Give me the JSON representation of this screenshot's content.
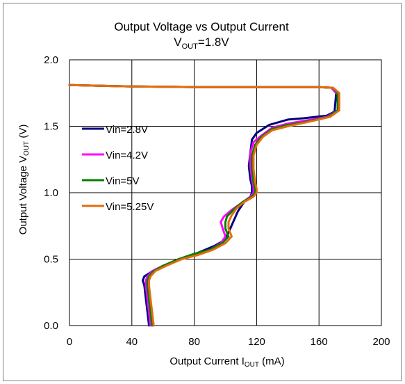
{
  "chart_data": {
    "type": "line",
    "title": "Output Voltage vs Output Current",
    "subtitle": {
      "main": "V",
      "sub": "OUT",
      "rest": "=1.8V"
    },
    "xlabel": {
      "main": "Output Current I",
      "sub": "OUT",
      "rest": " (mA)"
    },
    "ylabel": {
      "main": "Output Voltage V",
      "sub": "OUT",
      "rest": " (V)"
    },
    "xlim": [
      0,
      200
    ],
    "ylim": [
      0,
      2.0
    ],
    "xticks": [
      0,
      40,
      80,
      120,
      160,
      200
    ],
    "yticks": [
      0.0,
      0.5,
      1.0,
      1.5,
      2.0
    ],
    "xtick_labels": [
      "0",
      "40",
      "80",
      "120",
      "160",
      "200"
    ],
    "ytick_labels": [
      "0.0",
      "0.5",
      "1.0",
      "1.5",
      "2.0"
    ],
    "grid": true,
    "legend_position": "left-middle",
    "series": [
      {
        "name": "Vin=2.8V",
        "color": "#000080",
        "points": [
          [
            0,
            1.81
          ],
          [
            40,
            1.8
          ],
          [
            80,
            1.795
          ],
          [
            120,
            1.795
          ],
          [
            160,
            1.795
          ],
          [
            168,
            1.79
          ],
          [
            171,
            1.75
          ],
          [
            170,
            1.61
          ],
          [
            165,
            1.58
          ],
          [
            150,
            1.56
          ],
          [
            140,
            1.55
          ],
          [
            128,
            1.51
          ],
          [
            120,
            1.45
          ],
          [
            117,
            1.4
          ],
          [
            116,
            1.3
          ],
          [
            115,
            1.2
          ],
          [
            116,
            1.1
          ],
          [
            117,
            1.05
          ],
          [
            117,
            1.0
          ],
          [
            116,
            0.97
          ],
          [
            112,
            0.93
          ],
          [
            108,
            0.86
          ],
          [
            105,
            0.78
          ],
          [
            102,
            0.7
          ],
          [
            99,
            0.64
          ],
          [
            93,
            0.6
          ],
          [
            85,
            0.56
          ],
          [
            72,
            0.5
          ],
          [
            60,
            0.45
          ],
          [
            52,
            0.4
          ],
          [
            48,
            0.37
          ],
          [
            47,
            0.34
          ],
          [
            48,
            0.3
          ],
          [
            49,
            0.2
          ],
          [
            50,
            0.1
          ],
          [
            51,
            0.0
          ]
        ]
      },
      {
        "name": "Vin=4.2V",
        "color": "#ff00ff",
        "points": [
          [
            0,
            1.81
          ],
          [
            40,
            1.8
          ],
          [
            80,
            1.795
          ],
          [
            120,
            1.795
          ],
          [
            160,
            1.795
          ],
          [
            168,
            1.79
          ],
          [
            172,
            1.74
          ],
          [
            172,
            1.62
          ],
          [
            165,
            1.57
          ],
          [
            150,
            1.54
          ],
          [
            140,
            1.52
          ],
          [
            130,
            1.49
          ],
          [
            122,
            1.42
          ],
          [
            118,
            1.38
          ],
          [
            116,
            1.3
          ],
          [
            116,
            1.2
          ],
          [
            117,
            1.1
          ],
          [
            118,
            1.04
          ],
          [
            118,
            1.0
          ],
          [
            116,
            0.97
          ],
          [
            110,
            0.92
          ],
          [
            104,
            0.87
          ],
          [
            99,
            0.82
          ],
          [
            97,
            0.78
          ],
          [
            98,
            0.74
          ],
          [
            100,
            0.67
          ],
          [
            97,
            0.62
          ],
          [
            90,
            0.57
          ],
          [
            80,
            0.54
          ],
          [
            70,
            0.5
          ],
          [
            60,
            0.45
          ],
          [
            53,
            0.41
          ],
          [
            50,
            0.37
          ],
          [
            49,
            0.34
          ],
          [
            49,
            0.3
          ],
          [
            50,
            0.2
          ],
          [
            51,
            0.1
          ],
          [
            52,
            0.0
          ]
        ]
      },
      {
        "name": "Vin=5V",
        "color": "#008000",
        "points": [
          [
            0,
            1.81
          ],
          [
            40,
            1.8
          ],
          [
            80,
            1.795
          ],
          [
            120,
            1.795
          ],
          [
            160,
            1.795
          ],
          [
            169,
            1.79
          ],
          [
            172,
            1.75
          ],
          [
            172,
            1.62
          ],
          [
            166,
            1.57
          ],
          [
            150,
            1.53
          ],
          [
            140,
            1.51
          ],
          [
            130,
            1.48
          ],
          [
            123,
            1.42
          ],
          [
            119,
            1.36
          ],
          [
            117,
            1.28
          ],
          [
            117,
            1.18
          ],
          [
            118,
            1.08
          ],
          [
            119,
            1.03
          ],
          [
            119,
            1.0
          ],
          [
            117,
            0.97
          ],
          [
            111,
            0.93
          ],
          [
            105,
            0.87
          ],
          [
            101,
            0.82
          ],
          [
            100,
            0.78
          ],
          [
            100,
            0.73
          ],
          [
            102,
            0.67
          ],
          [
            98,
            0.62
          ],
          [
            90,
            0.57
          ],
          [
            80,
            0.54
          ],
          [
            70,
            0.5
          ],
          [
            60,
            0.45
          ],
          [
            54,
            0.41
          ],
          [
            51,
            0.37
          ],
          [
            50,
            0.34
          ],
          [
            50,
            0.3
          ],
          [
            51,
            0.2
          ],
          [
            52,
            0.1
          ],
          [
            53,
            0.0
          ]
        ]
      },
      {
        "name": "Vin=5.25V",
        "color": "#e46c0a",
        "points": [
          [
            0,
            1.81
          ],
          [
            40,
            1.8
          ],
          [
            80,
            1.795
          ],
          [
            120,
            1.795
          ],
          [
            160,
            1.795
          ],
          [
            169,
            1.79
          ],
          [
            173,
            1.75
          ],
          [
            173,
            1.62
          ],
          [
            167,
            1.57
          ],
          [
            152,
            1.53
          ],
          [
            140,
            1.5
          ],
          [
            130,
            1.47
          ],
          [
            124,
            1.42
          ],
          [
            120,
            1.36
          ],
          [
            118,
            1.28
          ],
          [
            118,
            1.18
          ],
          [
            119,
            1.08
          ],
          [
            120,
            1.03
          ],
          [
            120,
            1.0
          ],
          [
            118,
            0.97
          ],
          [
            112,
            0.93
          ],
          [
            107,
            0.88
          ],
          [
            104,
            0.83
          ],
          [
            102,
            0.78
          ],
          [
            102,
            0.73
          ],
          [
            104,
            0.67
          ],
          [
            100,
            0.62
          ],
          [
            92,
            0.57
          ],
          [
            82,
            0.53
          ],
          [
            72,
            0.5
          ],
          [
            62,
            0.45
          ],
          [
            55,
            0.41
          ],
          [
            52,
            0.37
          ],
          [
            51,
            0.34
          ],
          [
            51,
            0.3
          ],
          [
            52,
            0.2
          ],
          [
            53,
            0.1
          ],
          [
            54,
            0.0
          ]
        ]
      }
    ]
  }
}
